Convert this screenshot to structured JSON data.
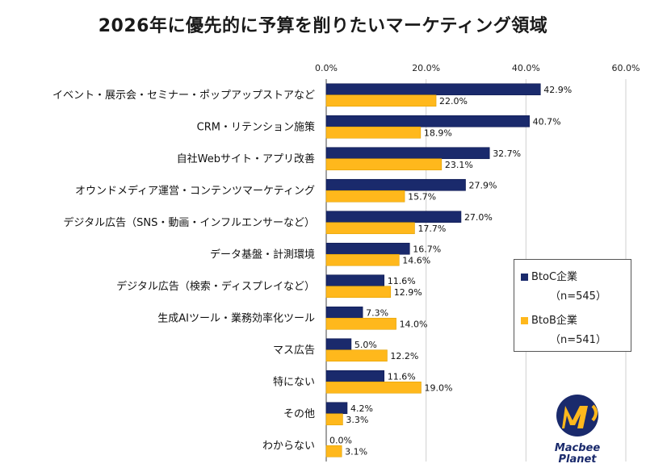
{
  "chart_data": {
    "type": "bar",
    "orientation": "horizontal",
    "title": "2026年に優先的に予算を削りたいマーケティング領域",
    "categories": [
      "イベント・展示会・セミナー・ポップアップストアなど",
      "CRM・リテンション施策",
      "自社Webサイト・アプリ改善",
      "オウンドメディア運営・コンテンツマーケティング",
      "デジタル広告（SNS・動画・インフルエンサーなど）",
      "データ基盤・計測環境",
      "デジタル広告（検索・ディスプレイなど）",
      "生成AIツール・業務効率化ツール",
      "マス広告",
      "特にない",
      "その他",
      "わからない"
    ],
    "series": [
      {
        "name": "BtoC企業",
        "sample": "（n=545）",
        "color": "#1a2a6c",
        "values": [
          42.9,
          40.7,
          32.7,
          27.9,
          27.0,
          16.7,
          11.6,
          7.3,
          5.0,
          11.6,
          4.2,
          0.0
        ]
      },
      {
        "name": "BtoB企業",
        "sample": "（n=541）",
        "color": "#ffb81c",
        "values": [
          22.0,
          18.9,
          23.1,
          15.7,
          17.7,
          14.6,
          12.9,
          14.0,
          12.2,
          19.0,
          3.3,
          3.1
        ]
      }
    ],
    "xticks": [
      "0.0%",
      "20.0%",
      "40.0%",
      "60.0%"
    ],
    "xlim": [
      0,
      60
    ],
    "value_suffix": "%",
    "gridlines": true,
    "legend_position": "right"
  },
  "logo": {
    "line1": "Macbee",
    "line2": "Planet"
  }
}
